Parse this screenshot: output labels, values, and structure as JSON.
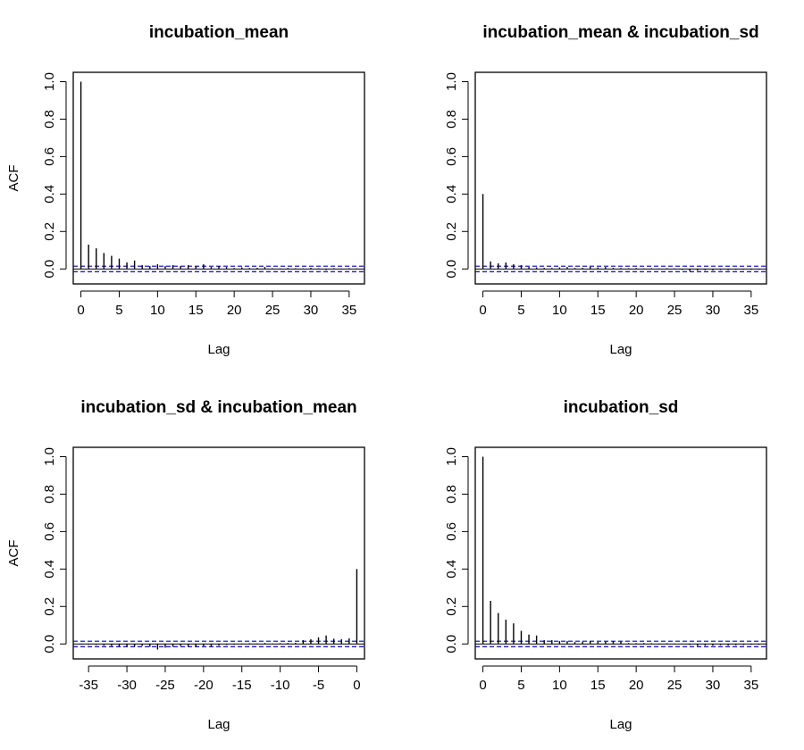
{
  "chart_data": [
    {
      "type": "bar",
      "title": "incubation_mean",
      "xlabel": "Lag",
      "ylabel": "ACF",
      "xlim": [
        -1,
        37
      ],
      "ylim": [
        -0.08,
        1.05
      ],
      "x_ticks": [
        0,
        5,
        10,
        15,
        20,
        25,
        30,
        35
      ],
      "y_ticks": [
        0.0,
        0.2,
        0.4,
        0.6,
        0.8,
        1.0
      ],
      "x_tick_labels": [
        "0",
        "5",
        "10",
        "15",
        "20",
        "25",
        "30",
        "35"
      ],
      "y_tick_labels": [
        "0.0",
        "0.2",
        "0.4",
        "0.6",
        "0.8",
        "1.0"
      ],
      "ci": 0.0145,
      "lags": [
        0,
        1,
        2,
        3,
        4,
        5,
        6,
        7,
        8,
        9,
        10,
        11,
        12,
        13,
        14,
        15,
        16,
        17,
        18,
        19,
        20,
        21,
        22,
        23,
        24,
        25,
        26,
        27,
        28,
        29,
        30,
        31,
        32,
        33,
        34,
        35,
        36
      ],
      "values": [
        1.0,
        0.13,
        0.11,
        0.085,
        0.07,
        0.055,
        0.035,
        0.045,
        0.02,
        0.015,
        0.025,
        0.015,
        0.02,
        0.015,
        0.02,
        0.015,
        0.025,
        0.01,
        0.015,
        0.01,
        0.005,
        0.008,
        0.005,
        0.006,
        0.01,
        0.004,
        0.003,
        0.005,
        0.004,
        0.003,
        0.006,
        0.004,
        -0.006,
        0.004,
        0.003,
        0.004,
        0.003
      ]
    },
    {
      "type": "bar",
      "title": "incubation_mean & incubation_sd",
      "xlabel": "Lag",
      "ylabel": "",
      "xlim": [
        -1,
        37
      ],
      "ylim": [
        -0.08,
        1.05
      ],
      "x_ticks": [
        0,
        5,
        10,
        15,
        20,
        25,
        30,
        35
      ],
      "y_ticks": [
        0.0,
        0.2,
        0.4,
        0.6,
        0.8,
        1.0
      ],
      "x_tick_labels": [
        "0",
        "5",
        "10",
        "15",
        "20",
        "25",
        "30",
        "35"
      ],
      "y_tick_labels": [
        "0.0",
        "0.2",
        "0.4",
        "0.6",
        "0.8",
        "1.0"
      ],
      "ci": 0.0145,
      "lags": [
        0,
        1,
        2,
        3,
        4,
        5,
        6,
        7,
        8,
        9,
        10,
        11,
        12,
        13,
        14,
        15,
        16,
        17,
        18,
        19,
        20,
        21,
        22,
        23,
        24,
        25,
        26,
        27,
        28,
        29,
        30,
        31,
        32,
        33,
        34,
        35,
        36
      ],
      "values": [
        0.4,
        0.04,
        0.03,
        0.035,
        0.025,
        0.02,
        0.01,
        0.008,
        0.006,
        0.005,
        0.008,
        0.01,
        0.005,
        0.006,
        0.012,
        0.008,
        0.01,
        0.006,
        0.005,
        0.004,
        0.005,
        0.003,
        0.004,
        0.003,
        0.004,
        0.003,
        -0.005,
        -0.012,
        -0.008,
        -0.006,
        -0.007,
        -0.005,
        -0.006,
        -0.004,
        -0.003,
        -0.004,
        -0.003
      ]
    },
    {
      "type": "bar",
      "title": "incubation_sd & incubation_mean",
      "xlabel": "Lag",
      "ylabel": "ACF",
      "xlim": [
        -37,
        1
      ],
      "ylim": [
        -0.08,
        1.05
      ],
      "x_ticks": [
        -35,
        -30,
        -25,
        -20,
        -15,
        -10,
        -5,
        0
      ],
      "y_ticks": [
        0.0,
        0.2,
        0.4,
        0.6,
        0.8,
        1.0
      ],
      "x_tick_labels": [
        "-35",
        "-30",
        "-25",
        "-20",
        "-15",
        "-10",
        "-5",
        "0"
      ],
      "y_tick_labels": [
        "0.0",
        "0.2",
        "0.4",
        "0.6",
        "0.8",
        "1.0"
      ],
      "ci": 0.0145,
      "lags": [
        -36,
        -35,
        -34,
        -33,
        -32,
        -31,
        -30,
        -29,
        -28,
        -27,
        -26,
        -25,
        -24,
        -23,
        -22,
        -21,
        -20,
        -19,
        -18,
        -17,
        -16,
        -15,
        -14,
        -13,
        -12,
        -11,
        -10,
        -9,
        -8,
        -7,
        -6,
        -5,
        -4,
        -3,
        -2,
        -1,
        0
      ],
      "values": [
        -0.003,
        -0.004,
        -0.005,
        -0.008,
        -0.01,
        -0.012,
        -0.015,
        -0.013,
        -0.01,
        -0.015,
        -0.03,
        -0.02,
        -0.015,
        -0.01,
        -0.012,
        -0.015,
        -0.01,
        -0.012,
        -0.008,
        -0.005,
        -0.004,
        0.003,
        0.004,
        0.003,
        0.005,
        0.003,
        0.004,
        0.005,
        0.006,
        0.02,
        0.025,
        0.035,
        0.045,
        0.028,
        0.025,
        0.03,
        0.4
      ]
    },
    {
      "type": "bar",
      "title": "incubation_sd",
      "xlabel": "Lag",
      "ylabel": "",
      "xlim": [
        -1,
        37
      ],
      "ylim": [
        -0.08,
        1.05
      ],
      "x_ticks": [
        0,
        5,
        10,
        15,
        20,
        25,
        30,
        35
      ],
      "y_ticks": [
        0.0,
        0.2,
        0.4,
        0.6,
        0.8,
        1.0
      ],
      "x_tick_labels": [
        "0",
        "5",
        "10",
        "15",
        "20",
        "25",
        "30",
        "35"
      ],
      "y_tick_labels": [
        "0.0",
        "0.2",
        "0.4",
        "0.6",
        "0.8",
        "1.0"
      ],
      "ci": 0.0145,
      "lags": [
        0,
        1,
        2,
        3,
        4,
        5,
        6,
        7,
        8,
        9,
        10,
        11,
        12,
        13,
        14,
        15,
        16,
        17,
        18,
        19,
        20,
        21,
        22,
        23,
        24,
        25,
        26,
        27,
        28,
        29,
        30,
        31,
        32,
        33,
        34,
        35,
        36
      ],
      "values": [
        1.0,
        0.23,
        0.165,
        0.13,
        0.11,
        0.07,
        0.05,
        0.045,
        0.02,
        0.02,
        0.015,
        0.015,
        0.01,
        0.012,
        0.015,
        0.01,
        0.012,
        0.015,
        0.012,
        0.005,
        0.004,
        0.005,
        0.004,
        0.003,
        0.004,
        0.003,
        0.002,
        -0.005,
        -0.01,
        -0.008,
        -0.008,
        -0.006,
        -0.008,
        -0.006,
        -0.005,
        -0.004,
        -0.004
      ]
    }
  ],
  "colors": {
    "ci_line": "#0000cc",
    "bar": "#000000",
    "axis": "#000000",
    "background": "#ffffff"
  }
}
